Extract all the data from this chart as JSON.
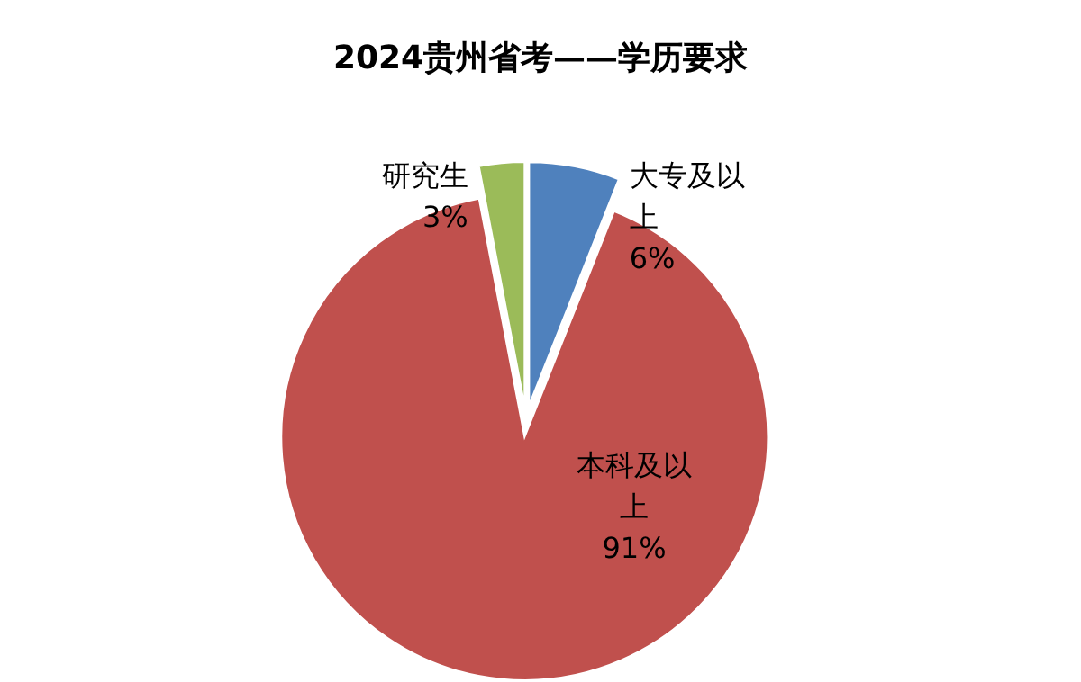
{
  "chart_data": {
    "type": "pie",
    "title": "2024贵州省考——学历要求",
    "categories": [
      "大专及以上",
      "本科及以上",
      "研究生"
    ],
    "values": [
      6,
      91,
      3
    ],
    "colors": [
      "#4f81bd",
      "#c0504d",
      "#9bbb59"
    ],
    "value_labels": [
      "6%",
      "91%",
      "3%"
    ]
  }
}
